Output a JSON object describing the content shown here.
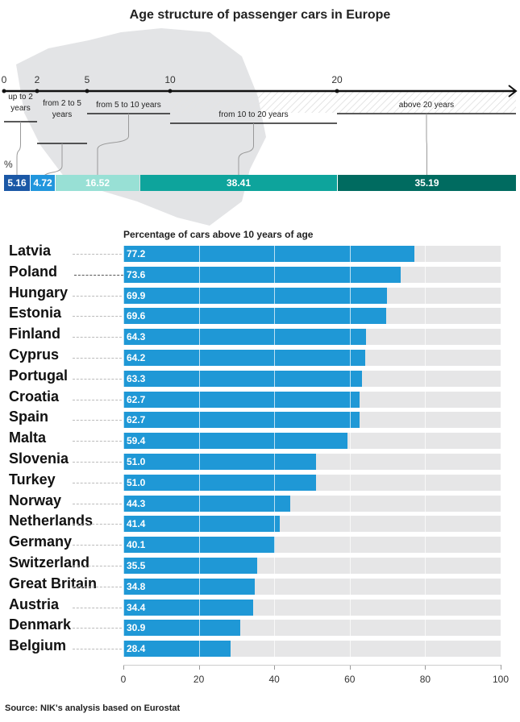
{
  "chart_data": [
    {
      "type": "bar",
      "title": "Age structure of passenger cars in Europe",
      "orientation": "stacked-horizontal",
      "axis_ticks": [
        "0",
        "2",
        "5",
        "10",
        "20"
      ],
      "ylabel": "%",
      "categories": [
        "up to 2 years",
        "from 2 to 5 years",
        "from 5 to 10 years",
        "from 10 to 20 years",
        "above 20 years"
      ],
      "values": [
        5.16,
        4.72,
        16.52,
        38.41,
        35.19
      ],
      "labels": [
        "5.16",
        "4.72",
        "16.52",
        "38.41",
        "35.19"
      ],
      "colors": [
        "#1b58a6",
        "#2196dd",
        "#98e0d5",
        "#0ea49c",
        "#006b60"
      ]
    },
    {
      "type": "bar",
      "orientation": "horizontal",
      "title": "Percentage of cars above 10 years of age",
      "xlim": [
        0,
        100
      ],
      "xticks": [
        "0",
        "20",
        "40",
        "60",
        "80",
        "100"
      ],
      "grid": true,
      "highlight": "Poland",
      "categories": [
        "Latvia",
        "Poland",
        "Hungary",
        "Estonia",
        "Finland",
        "Cyprus",
        "Portugal",
        "Croatia",
        "Spain",
        "Malta",
        "Slovenia",
        "Turkey",
        "Norway",
        "Netherlands",
        "Germany",
        "Switzerland",
        "Great Britain",
        "Austria",
        "Denmark",
        "Belgium"
      ],
      "values": [
        77.2,
        73.6,
        69.9,
        69.6,
        64.3,
        64.2,
        63.3,
        62.7,
        62.7,
        59.4,
        51.0,
        51.0,
        44.3,
        41.4,
        40.1,
        35.5,
        34.8,
        34.4,
        30.9,
        28.4
      ],
      "labels": [
        "77.2",
        "73.6",
        "69.9",
        "69.6",
        "64.3",
        "64.2",
        "63.3",
        "62.7",
        "62.7",
        "59.4",
        "51.0",
        "51.0",
        "44.3",
        "41.4",
        "40.1",
        "35.5",
        "34.8",
        "34.4",
        "30.9",
        "28.4"
      ],
      "bar_color": "#1f98d6",
      "track_color": "#e6e6e7"
    }
  ],
  "source": "Source: NIK's analysis based on Eurostat"
}
